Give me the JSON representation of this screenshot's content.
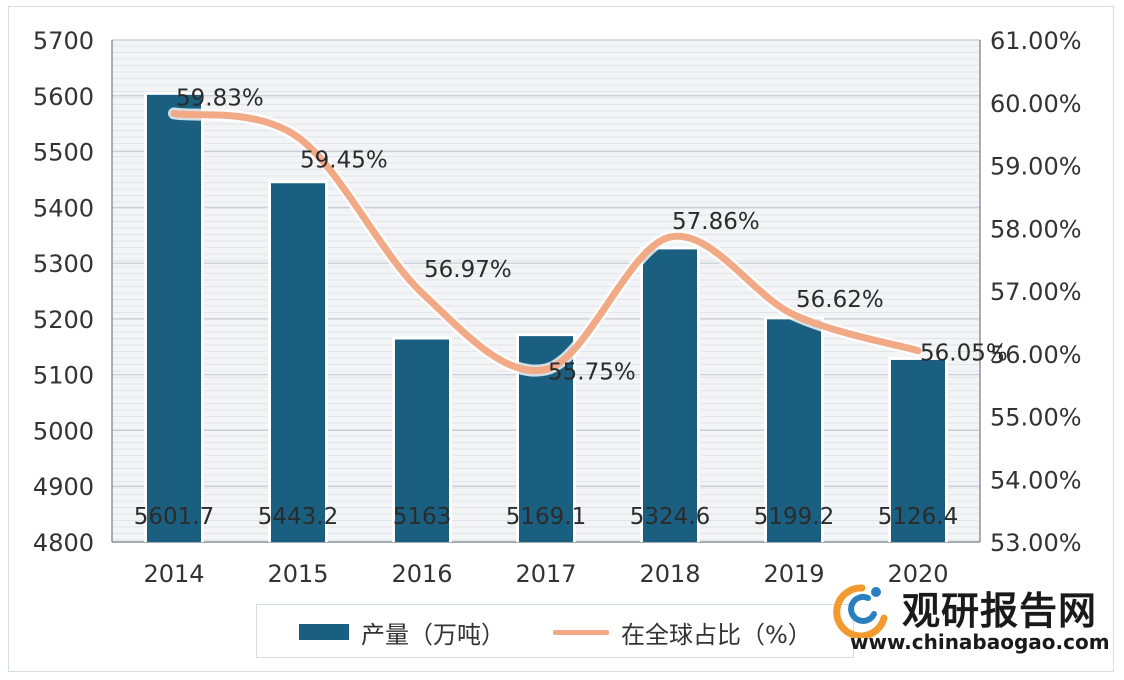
{
  "chart_data": {
    "type": "bar+line",
    "categories": [
      "2014",
      "2015",
      "2016",
      "2017",
      "2018",
      "2019",
      "2020"
    ],
    "series": [
      {
        "name": "产量（万吨）",
        "type": "bar",
        "axis": "left",
        "values": [
          5601.7,
          5443.2,
          5163,
          5169.1,
          5324.6,
          5199.2,
          5126.4
        ],
        "labels": [
          "5601.7",
          "5443.2",
          "5163",
          "5169.1",
          "5324.6",
          "5199.2",
          "5126.4"
        ]
      },
      {
        "name": "在全球占比（%）",
        "type": "line",
        "axis": "right",
        "values": [
          59.83,
          59.45,
          56.97,
          55.75,
          57.86,
          56.62,
          56.05
        ],
        "labels": [
          "59.83%",
          "59.45%",
          "56.97%",
          "55.75%",
          "57.86%",
          "56.62%",
          "56.05%"
        ]
      }
    ],
    "y_left": {
      "min": 4800,
      "max": 5700,
      "step": 100,
      "ticks": [
        "4800",
        "4900",
        "5000",
        "5100",
        "5200",
        "5300",
        "5400",
        "5500",
        "5600",
        "5700"
      ]
    },
    "y_right": {
      "min": 53,
      "max": 61,
      "step": 1,
      "ticks": [
        "53.00%",
        "54.00%",
        "55.00%",
        "56.00%",
        "57.00%",
        "58.00%",
        "59.00%",
        "60.00%",
        "61.00%"
      ]
    },
    "grid": true,
    "legend_position": "bottom",
    "colors": {
      "bar": "#1b5f80",
      "line": "#f2aa86",
      "grid": "#c5ccd3",
      "text": "#333333"
    }
  },
  "legend": {
    "bar_label": "产量（万吨）",
    "line_label": "在全球占比（%）"
  },
  "watermark": {
    "name_cn": "观研报告网",
    "url": "www.chinabaogao.com"
  }
}
